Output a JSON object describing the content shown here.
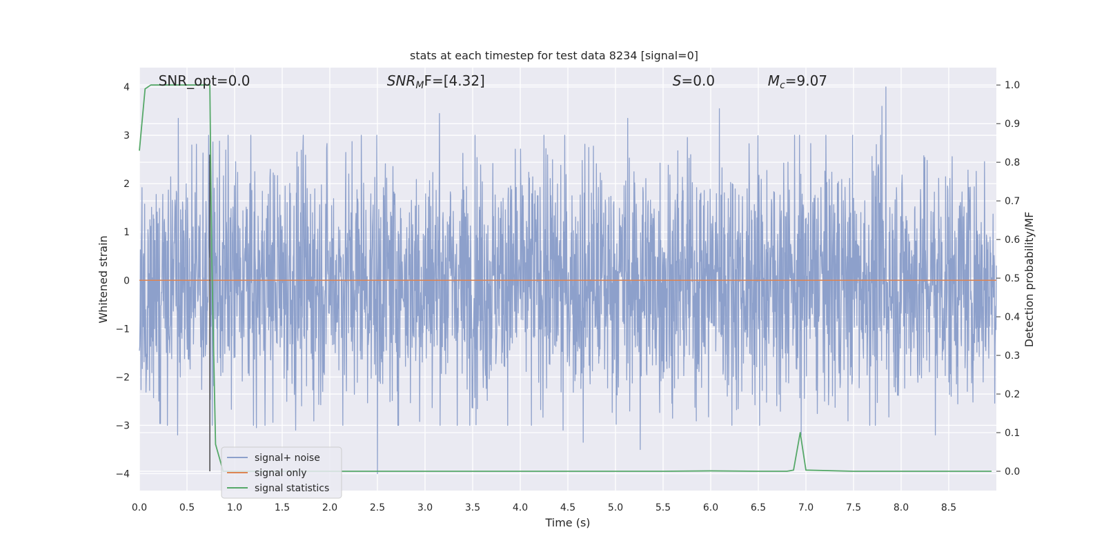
{
  "chart_data": {
    "type": "line",
    "title": "stats at each timestep for test data 8234 [signal=0]",
    "xlabel": "Time (s)",
    "ylabel": "Whitened strain",
    "ylabel_right": "Detection probability/MF",
    "xlim": [
      0,
      9
    ],
    "ylim": [
      -4.35,
      4.4
    ],
    "ylim_right": [
      -0.05,
      1.045
    ],
    "x_ticks": [
      "0.0",
      "0.5",
      "1.0",
      "1.5",
      "2.0",
      "2.5",
      "3.0",
      "3.5",
      "4.0",
      "4.5",
      "5.0",
      "5.5",
      "6.0",
      "6.5",
      "7.0",
      "7.5",
      "8.0",
      "8.5"
    ],
    "y_ticks_left": [
      "4",
      "3",
      "2",
      "1",
      "0",
      "−1",
      "−2",
      "−3",
      "−4"
    ],
    "y_ticks_right": [
      "1.0",
      "0.9",
      "0.8",
      "0.7",
      "0.6",
      "0.5",
      "0.4",
      "0.3",
      "0.2",
      "0.1",
      "0.0"
    ],
    "grid": true,
    "legend": "lower-left",
    "annotations": [
      {
        "text": "SNR_opt=0.0",
        "x": 0.2
      },
      {
        "text": "SNR",
        "sub": "M",
        "suffix": "F=[4.32]",
        "x": 2.6
      },
      {
        "text": "S",
        "suffix": "=0.0",
        "x": 5.6
      },
      {
        "text": "M",
        "sub": "c",
        "suffix": "=9.07",
        "x": 6.6
      }
    ],
    "marker_line": {
      "x": 0.74,
      "y_range": [
        -3.95,
        2.6
      ],
      "color": "#444444"
    },
    "series": [
      {
        "name": "signal+ noise",
        "axis": "left",
        "color": "#8da0cb",
        "kind": "noise",
        "typical_amplitude": 1.6,
        "peaks": [
          {
            "x": 0.41,
            "y": 3.35
          },
          {
            "x": 0.55,
            "y": 2.8
          },
          {
            "x": 0.73,
            "y": 2.55
          },
          {
            "x": 2.33,
            "y": 3.0
          },
          {
            "x": 3.15,
            "y": 3.45
          },
          {
            "x": 4.25,
            "y": 3.0
          },
          {
            "x": 5.13,
            "y": 3.35
          },
          {
            "x": 6.09,
            "y": 3.55
          },
          {
            "x": 7.84,
            "y": 4.0
          },
          {
            "x": 7.8,
            "y": 3.6
          },
          {
            "x": 0.4,
            "y": -3.2
          },
          {
            "x": 2.5,
            "y": -4.0
          },
          {
            "x": 4.66,
            "y": -3.35
          },
          {
            "x": 5.26,
            "y": -3.5
          },
          {
            "x": 6.95,
            "y": -3.2
          },
          {
            "x": 8.36,
            "y": -3.2
          },
          {
            "x": 1.64,
            "y": -3.1
          },
          {
            "x": 1.23,
            "y": -3.05
          },
          {
            "x": 4.45,
            "y": -3.1
          }
        ]
      },
      {
        "name": "signal only",
        "axis": "left",
        "color": "#dd8452",
        "x": [
          0,
          9
        ],
        "y": [
          0,
          0
        ]
      },
      {
        "name": "signal statistics",
        "axis": "right",
        "color": "#55a868",
        "x": [
          0,
          0.06,
          0.12,
          0.2,
          0.3,
          0.4,
          0.5,
          0.6,
          0.7,
          0.74,
          0.76,
          0.8,
          0.88,
          1.0,
          2.0,
          3.0,
          4.0,
          5.0,
          5.5,
          6.0,
          6.5,
          6.8,
          6.87,
          6.94,
          7.0,
          7.5,
          8.0,
          8.5,
          8.95
        ],
        "y": [
          0.83,
          0.99,
          1.0,
          1.0,
          1.0,
          1.0,
          1.0,
          1.0,
          1.0,
          1.0,
          0.55,
          0.07,
          0.0,
          0.0,
          0.0,
          0.0,
          0.0,
          0.0,
          0.0,
          0.001,
          0.0,
          0.0,
          0.003,
          0.1,
          0.003,
          0.0,
          0.0,
          0.0,
          0.0
        ]
      }
    ]
  }
}
